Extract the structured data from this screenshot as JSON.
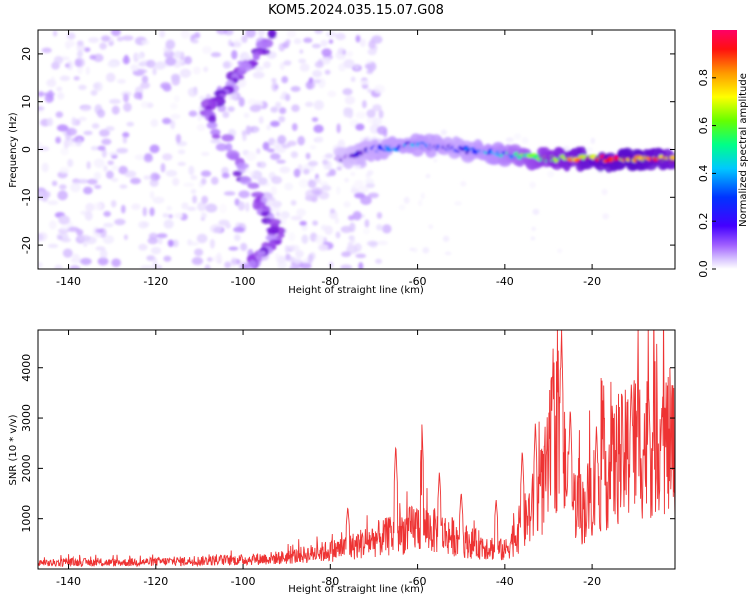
{
  "figure_title": "KOM5.2024.035.15.07.G08",
  "chart_data": [
    {
      "type": "heatmap",
      "title": "",
      "xlabel": "Height of straight line (km)",
      "ylabel": "Frequency (Hz)",
      "xlim": [
        -147,
        -1
      ],
      "ylim": [
        -25,
        25
      ],
      "xticks": [
        -140,
        -120,
        -100,
        -80,
        -60,
        -40,
        -20
      ],
      "yticks": [
        -20,
        -10,
        0,
        10,
        20
      ],
      "colorbar": {
        "label": "Normalized spectral amplitude",
        "range": [
          0,
          1
        ],
        "ticks": [
          0.0,
          0.2,
          0.4,
          0.6,
          0.8
        ],
        "colormap": [
          "#ffffff",
          "#e6d9ff",
          "#b98cff",
          "#8a2be2",
          "#4b00c8",
          "#1a1aff",
          "#00bfff",
          "#00ff7f",
          "#9aff00",
          "#ffff00",
          "#ff9900",
          "#ff0000",
          "#ff0066"
        ]
      },
      "features": {
        "diagonal_band": {
          "points": [
            {
              "x": -93,
              "y": 24
            },
            {
              "x": -102,
              "y": 15
            },
            {
              "x": -108,
              "y": 8
            },
            {
              "x": -97,
              "y": -10
            },
            {
              "x": -92,
              "y": -18
            },
            {
              "x": -99,
              "y": -25
            }
          ],
          "amplitude": 0.25
        },
        "tone_track": {
          "points": [
            {
              "x": -78,
              "y": -2
            },
            {
              "x": -70,
              "y": 0
            },
            {
              "x": -60,
              "y": 1
            },
            {
              "x": -50,
              "y": 0
            },
            {
              "x": -40,
              "y": -1
            },
            {
              "x": -30,
              "y": -2
            },
            {
              "x": -20,
              "y": -2
            },
            {
              "x": -10,
              "y": -2
            },
            {
              "x": -1,
              "y": -2
            }
          ],
          "amplitude": [
            0.3,
            0.4,
            0.45,
            0.4,
            0.5,
            0.7,
            0.85,
            0.9,
            0.8
          ]
        },
        "noise_region": {
          "x_range": [
            -147,
            -75
          ],
          "y_range": [
            -25,
            25
          ],
          "amplitude": 0.15
        }
      }
    },
    {
      "type": "line",
      "title": "",
      "xlabel": "Height of straight line (km)",
      "ylabel": "SNR (10 * v/v)",
      "xlim": [
        -147,
        -1
      ],
      "ylim": [
        0,
        4750
      ],
      "xticks": [
        -140,
        -120,
        -100,
        -80,
        -60,
        -40,
        -20
      ],
      "yticks": [
        1000,
        2000,
        3000,
        4000
      ],
      "color": "#ee3333",
      "series": [
        {
          "x": [
            -147,
            -140,
            -130,
            -120,
            -110,
            -100,
            -95,
            -90,
            -85,
            -80,
            -75,
            -70,
            -65,
            -62,
            -60,
            -58,
            -55,
            -52,
            -50,
            -48,
            -45,
            -42,
            -40,
            -38,
            -35,
            -32,
            -30,
            -29,
            -28,
            -27,
            -26,
            -25,
            -22,
            -20,
            -18,
            -15,
            -12,
            -10,
            -8,
            -5,
            -3,
            -1
          ],
          "y": [
            120,
            150,
            140,
            160,
            180,
            200,
            230,
            260,
            330,
            400,
            500,
            650,
            750,
            850,
            950,
            900,
            800,
            720,
            650,
            580,
            520,
            450,
            400,
            700,
            1100,
            1600,
            2200,
            2900,
            3100,
            2700,
            2100,
            1600,
            1300,
            1700,
            2000,
            2300,
            2500,
            2800,
            2700,
            2900,
            2800,
            2700
          ]
        }
      ],
      "peaks": [
        {
          "x": -76,
          "y": 1250
        },
        {
          "x": -65,
          "y": 2500
        },
        {
          "x": -59,
          "y": 2900
        },
        {
          "x": -55,
          "y": 1950
        },
        {
          "x": -50,
          "y": 1550
        },
        {
          "x": -42,
          "y": 1400
        },
        {
          "x": -36,
          "y": 2400
        },
        {
          "x": -33,
          "y": 2950
        },
        {
          "x": -29,
          "y": 3950
        },
        {
          "x": -27,
          "y": 4800
        },
        {
          "x": -25,
          "y": 3250
        },
        {
          "x": -19,
          "y": 2850
        },
        {
          "x": -11,
          "y": 3750
        },
        {
          "x": -7,
          "y": 3500
        },
        {
          "x": -4,
          "y": 3250
        }
      ]
    }
  ]
}
